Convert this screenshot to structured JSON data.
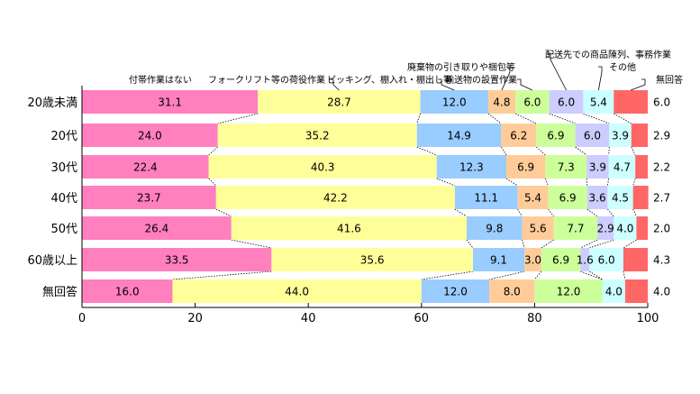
{
  "chart_data": {
    "type": "bar",
    "orientation": "horizontal",
    "stacked": true,
    "categories": [
      "20歳未満",
      "20代",
      "30代",
      "40代",
      "50代",
      "60歳以上",
      "無回答"
    ],
    "series": [
      {
        "name": "付帯作業はない",
        "color": "#ff7fbf",
        "values": [
          31.1,
          24.0,
          22.4,
          23.7,
          26.4,
          33.5,
          16.0
        ]
      },
      {
        "name": "フォークリフト等の荷役作業",
        "color": "#ffff99",
        "values": [
          28.7,
          35.2,
          40.3,
          42.2,
          41.6,
          35.6,
          44.0
        ]
      },
      {
        "name": "ピッキング、棚入れ・棚出し等",
        "color": "#99ccff",
        "values": [
          12.0,
          14.9,
          12.3,
          11.1,
          9.8,
          9.1,
          12.0
        ]
      },
      {
        "name": "廃棄物の引き取りや梱包等",
        "color": "#ffcc99",
        "values": [
          4.8,
          6.2,
          6.9,
          5.4,
          5.6,
          3.0,
          8.0
        ]
      },
      {
        "name": "輸送物の設置作業",
        "color": "#ccff99",
        "values": [
          6.0,
          6.9,
          7.3,
          6.9,
          7.7,
          6.9,
          12.0
        ]
      },
      {
        "name": "配送先での商品陳列、事務作業",
        "color": "#ccccff",
        "values": [
          6.0,
          6.0,
          3.9,
          3.6,
          2.9,
          1.6,
          0
        ]
      },
      {
        "name": "その他",
        "color": "#ccffff",
        "values": [
          5.4,
          3.9,
          4.7,
          4.5,
          4.0,
          6.0,
          4.0
        ]
      },
      {
        "name": "無回答",
        "color": "#ff6666",
        "values": [
          6.0,
          2.9,
          2.2,
          2.7,
          2.0,
          4.3,
          4.0
        ]
      }
    ],
    "label_display": {
      "0": [
        "31.1",
        "24.0",
        "22.4",
        "23.7",
        "26.4",
        "33.5",
        "16.0"
      ],
      "1": [
        "28.7",
        "35.2",
        "40.3",
        "42.2",
        "41.6",
        "35.6",
        "44.0"
      ],
      "2": [
        "12.0",
        "14.9",
        "12.3",
        "11.1",
        "9.8",
        "9.1",
        "12.0"
      ],
      "3": [
        "4.8",
        "6.2",
        "6.9",
        "5.4",
        "5.6",
        "3.0",
        "8.0"
      ],
      "4": [
        "6.0",
        "6.9",
        "7.3",
        "6.9",
        "7.7",
        "6.9",
        "12.0"
      ],
      "5": [
        "6.0",
        "6.0",
        "3.9",
        "3.6",
        "2.9",
        "1.6",
        ""
      ],
      "6": [
        "5.4",
        "3.9",
        "4.7",
        "4.5",
        "4.0",
        "6.0",
        "4.0"
      ],
      "7": [
        "6.0",
        "2.9",
        "2.2",
        "2.7",
        "2.0",
        "4.3",
        "4.0"
      ]
    },
    "xlim": [
      0,
      100
    ],
    "xticks": [
      "0",
      "20",
      "40",
      "60",
      "80",
      "100"
    ],
    "connector_lines": true,
    "legend_placement": "top, callout labels above first bar"
  }
}
